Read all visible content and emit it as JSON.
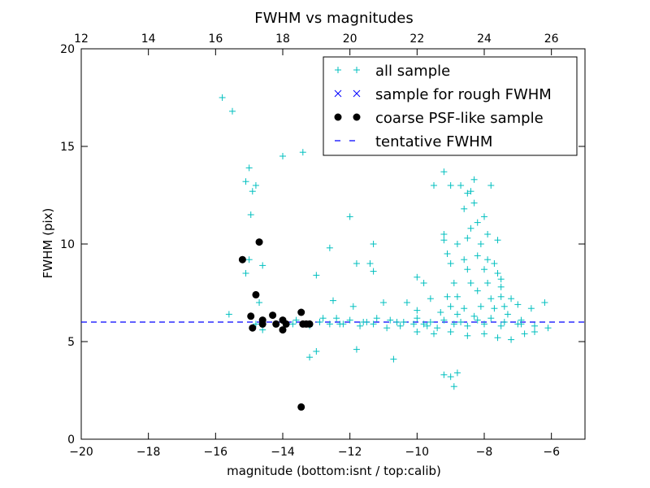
{
  "chart_data": {
    "type": "scatter",
    "title": "FWHM vs magnitudes",
    "xlabel": "magnitude (bottom:isnt / top:calib)",
    "ylabel": "FWHM (pix)",
    "xlim": [
      -20,
      -5
    ],
    "ylim": [
      0,
      20
    ],
    "xlim_top": [
      12,
      27
    ],
    "x_ticks": [
      "−20",
      "−18",
      "−16",
      "−14",
      "−12",
      "−10",
      "−8",
      "−6"
    ],
    "x_tick_values": [
      -20,
      -18,
      -16,
      -14,
      -12,
      -10,
      -8,
      -6
    ],
    "x_top_ticks": [
      "12",
      "14",
      "16",
      "18",
      "20",
      "22",
      "24",
      "26"
    ],
    "x_top_tick_values": [
      12,
      14,
      16,
      18,
      20,
      22,
      24,
      26
    ],
    "y_ticks": [
      "0",
      "5",
      "10",
      "15",
      "20"
    ],
    "y_tick_values": [
      0,
      5,
      10,
      15,
      20
    ],
    "grid": false,
    "legend_position": "top-right",
    "series": [
      {
        "name": "all sample",
        "marker": "plus",
        "color": "#00bfbf",
        "points": [
          [
            -15.8,
            17.5
          ],
          [
            -15.5,
            16.8
          ],
          [
            -15.6,
            6.4
          ],
          [
            -15.1,
            13.2
          ],
          [
            -15.0,
            13.9
          ],
          [
            -14.9,
            12.7
          ],
          [
            -14.8,
            13.0
          ],
          [
            -14.95,
            11.5
          ],
          [
            -14.0,
            14.5
          ],
          [
            -13.4,
            14.7
          ],
          [
            -15.0,
            9.2
          ],
          [
            -15.1,
            8.5
          ],
          [
            -14.6,
            8.9
          ],
          [
            -14.7,
            7.0
          ],
          [
            -13.0,
            8.4
          ],
          [
            -12.6,
            9.8
          ],
          [
            -12.0,
            11.4
          ],
          [
            -11.8,
            9.0
          ],
          [
            -11.4,
            9.0
          ],
          [
            -11.3,
            10.0
          ],
          [
            -11.3,
            8.6
          ],
          [
            -12.5,
            7.1
          ],
          [
            -11.9,
            6.8
          ],
          [
            -11.0,
            7.0
          ],
          [
            -10.3,
            7.0
          ],
          [
            -10.0,
            6.6
          ],
          [
            -10.0,
            8.3
          ],
          [
            -9.6,
            7.2
          ],
          [
            -9.8,
            8.0
          ],
          [
            -9.1,
            7.3
          ],
          [
            -9.0,
            13.0
          ],
          [
            -9.2,
            13.7
          ],
          [
            -9.5,
            13.0
          ],
          [
            -8.7,
            13.0
          ],
          [
            -8.4,
            12.7
          ],
          [
            -8.5,
            12.6
          ],
          [
            -8.3,
            13.3
          ],
          [
            -8.3,
            12.1
          ],
          [
            -7.8,
            13.0
          ],
          [
            -8.0,
            11.4
          ],
          [
            -8.6,
            11.8
          ],
          [
            -8.2,
            11.1
          ],
          [
            -8.4,
            10.8
          ],
          [
            -8.5,
            10.3
          ],
          [
            -8.1,
            10.0
          ],
          [
            -7.9,
            10.5
          ],
          [
            -7.6,
            10.2
          ],
          [
            -9.2,
            10.5
          ],
          [
            -9.2,
            10.2
          ],
          [
            -8.8,
            10.0
          ],
          [
            -9.1,
            9.5
          ],
          [
            -9.0,
            9.0
          ],
          [
            -8.6,
            9.2
          ],
          [
            -8.2,
            9.4
          ],
          [
            -7.9,
            9.2
          ],
          [
            -7.7,
            9.0
          ],
          [
            -8.5,
            8.7
          ],
          [
            -8.0,
            8.7
          ],
          [
            -7.6,
            8.5
          ],
          [
            -8.9,
            8.0
          ],
          [
            -8.4,
            8.0
          ],
          [
            -7.9,
            8.0
          ],
          [
            -7.5,
            7.8
          ],
          [
            -7.5,
            8.2
          ],
          [
            -8.2,
            7.6
          ],
          [
            -7.8,
            7.2
          ],
          [
            -7.5,
            7.3
          ],
          [
            -7.2,
            7.2
          ],
          [
            -8.8,
            7.3
          ],
          [
            -9.0,
            6.8
          ],
          [
            -8.6,
            6.7
          ],
          [
            -8.1,
            6.8
          ],
          [
            -7.7,
            6.7
          ],
          [
            -7.4,
            6.8
          ],
          [
            -7.0,
            6.9
          ],
          [
            -6.6,
            6.7
          ],
          [
            -6.2,
            7.0
          ],
          [
            -9.3,
            6.5
          ],
          [
            -8.8,
            6.4
          ],
          [
            -8.3,
            6.3
          ],
          [
            -7.8,
            6.2
          ],
          [
            -7.3,
            6.4
          ],
          [
            -6.9,
            6.1
          ],
          [
            -12.8,
            6.2
          ],
          [
            -12.4,
            6.2
          ],
          [
            -12.0,
            6.1
          ],
          [
            -11.6,
            6.0
          ],
          [
            -11.2,
            6.2
          ],
          [
            -10.8,
            6.1
          ],
          [
            -10.4,
            6.0
          ],
          [
            -10.0,
            6.2
          ],
          [
            -9.6,
            6.0
          ],
          [
            -9.2,
            6.1
          ],
          [
            -13.2,
            5.8
          ],
          [
            -12.9,
            6.0
          ],
          [
            -12.6,
            5.9
          ],
          [
            -12.2,
            5.9
          ],
          [
            -11.7,
            5.8
          ],
          [
            -11.3,
            5.9
          ],
          [
            -10.9,
            5.7
          ],
          [
            -10.5,
            5.8
          ],
          [
            -10.1,
            5.9
          ],
          [
            -9.7,
            5.8
          ],
          [
            -9.4,
            5.7
          ],
          [
            -8.9,
            5.9
          ],
          [
            -8.5,
            5.8
          ],
          [
            -8.0,
            5.9
          ],
          [
            -7.5,
            5.8
          ],
          [
            -7.0,
            5.9
          ],
          [
            -6.5,
            5.8
          ],
          [
            -10.0,
            5.5
          ],
          [
            -9.5,
            5.4
          ],
          [
            -9.0,
            5.5
          ],
          [
            -8.5,
            5.3
          ],
          [
            -8.0,
            5.4
          ],
          [
            -7.6,
            5.2
          ],
          [
            -7.2,
            5.1
          ],
          [
            -6.8,
            5.4
          ],
          [
            -6.5,
            5.5
          ],
          [
            -6.1,
            5.7
          ],
          [
            -13.2,
            4.2
          ],
          [
            -13.0,
            4.5
          ],
          [
            -11.8,
            4.6
          ],
          [
            -10.7,
            4.1
          ],
          [
            -9.2,
            3.3
          ],
          [
            -9.0,
            3.2
          ],
          [
            -8.9,
            2.7
          ],
          [
            -8.8,
            3.4
          ],
          [
            -14.6,
            5.6
          ],
          [
            -14.8,
            5.9
          ],
          [
            -13.7,
            5.9
          ],
          [
            -13.6,
            6.1
          ],
          [
            -12.3,
            5.9
          ],
          [
            -11.5,
            6.0
          ],
          [
            -10.6,
            6.0
          ],
          [
            -9.8,
            5.9
          ],
          [
            -8.7,
            6.0
          ],
          [
            -8.2,
            6.1
          ],
          [
            -7.4,
            6.0
          ],
          [
            -6.9,
            5.9
          ]
        ]
      },
      {
        "name": "sample for rough FWHM",
        "marker": "x",
        "color": "#0000ff",
        "points": []
      },
      {
        "name": "coarse PSF-like sample",
        "marker": "dot",
        "color": "#000000",
        "points": [
          [
            -15.2,
            9.2
          ],
          [
            -14.7,
            10.1
          ],
          [
            -14.8,
            7.4
          ],
          [
            -14.95,
            6.3
          ],
          [
            -14.9,
            5.7
          ],
          [
            -14.6,
            6.1
          ],
          [
            -14.6,
            5.9
          ],
          [
            -14.3,
            6.35
          ],
          [
            -14.2,
            5.9
          ],
          [
            -14.0,
            6.1
          ],
          [
            -14.0,
            5.6
          ],
          [
            -13.9,
            5.9
          ],
          [
            -13.45,
            6.5
          ],
          [
            -13.4,
            5.9
          ],
          [
            -13.3,
            5.9
          ],
          [
            -13.2,
            5.9
          ],
          [
            -13.45,
            1.65
          ]
        ]
      }
    ],
    "reference_line": {
      "name": "tentative FWHM",
      "style": "dashed",
      "color": "#0000ff",
      "y": 6.0
    }
  }
}
